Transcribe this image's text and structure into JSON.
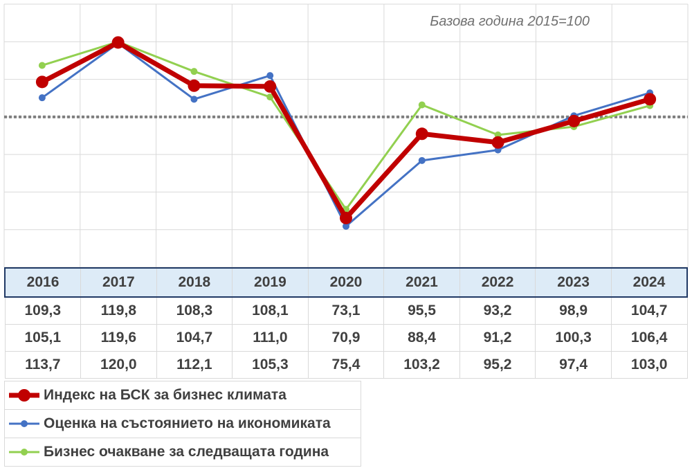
{
  "chart_data": {
    "type": "line",
    "note": "Базова година 2015=100",
    "categories": [
      "2016",
      "2017",
      "2018",
      "2019",
      "2020",
      "2021",
      "2022",
      "2023",
      "2024"
    ],
    "ylim": [
      60,
      130
    ],
    "reference_line": 100,
    "grid": true,
    "series": [
      {
        "name": "Индекс на БСК за бизнес климата",
        "color": "#c00000",
        "values": [
          "109,3",
          "119,8",
          "108,3",
          "108,1",
          "73,1",
          "95,5",
          "93,2",
          "98,9",
          "104,7"
        ]
      },
      {
        "name": "Оценка на състоянието на икономиката",
        "color": "#4472c4",
        "values": [
          "105,1",
          "119,6",
          "104,7",
          "111,0",
          "70,9",
          "88,4",
          "91,2",
          "100,3",
          "106,4"
        ]
      },
      {
        "name": "Бизнес очакване за следващата година",
        "color": "#92d050",
        "values": [
          "113,7",
          "120,0",
          "112,1",
          "105,3",
          "75,4",
          "103,2",
          "95,2",
          "97,4",
          "103,0"
        ]
      }
    ],
    "legend": "bottom-left"
  }
}
